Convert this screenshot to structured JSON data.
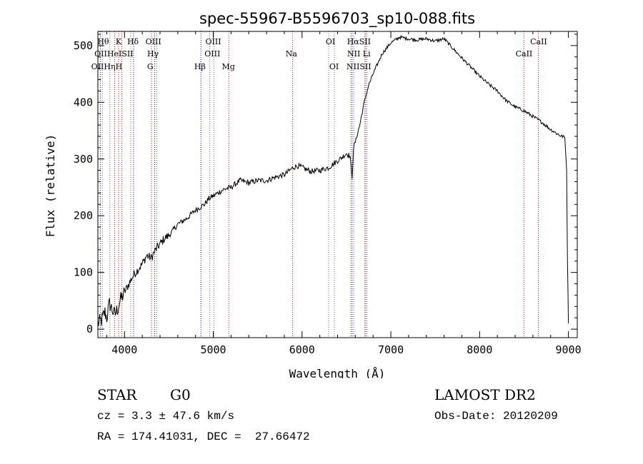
{
  "chart_data": {
    "type": "line",
    "title": "spec-55967-B5596703_sp10-088.fits",
    "xlabel": "Wavelength (Å)",
    "ylabel": "Flux (relative)",
    "xlim": [
      3700,
      9100
    ],
    "ylim": [
      -15,
      525
    ],
    "xticks": [
      4000,
      5000,
      6000,
      7000,
      8000,
      9000
    ],
    "yticks": [
      0,
      100,
      200,
      300,
      400,
      500
    ],
    "grid": false,
    "series": [
      {
        "x": [
          3700,
          3740,
          3780,
          3800,
          3830,
          3860,
          3890,
          3920,
          3950,
          4000,
          4050,
          4100,
          4150,
          4200,
          4250,
          4300,
          4350,
          4400,
          4450,
          4500,
          4600,
          4700,
          4800,
          4850,
          4900,
          4950,
          5000,
          5050,
          5100,
          5150,
          5200,
          5300,
          5400,
          5500,
          5600,
          5700,
          5800,
          5900,
          5950,
          6000,
          6100,
          6200,
          6300,
          6400,
          6450,
          6500,
          6540,
          6563,
          6580,
          6600,
          6650,
          6700,
          6750,
          6800,
          6900,
          7000,
          7100,
          7200,
          7300,
          7400,
          7500,
          7600,
          7700,
          7800,
          7900,
          8000,
          8100,
          8200,
          8300,
          8400,
          8500,
          8600,
          8700,
          8800,
          8900,
          8960,
          8980,
          8990,
          9000
        ],
        "y": [
          10,
          15,
          30,
          20,
          45,
          35,
          25,
          35,
          50,
          65,
          80,
          95,
          105,
          115,
          130,
          125,
          140,
          150,
          160,
          165,
          185,
          195,
          210,
          215,
          220,
          230,
          235,
          240,
          245,
          248,
          250,
          262,
          258,
          262,
          262,
          268,
          272,
          285,
          288,
          285,
          278,
          280,
          285,
          297,
          303,
          310,
          305,
          268,
          320,
          330,
          360,
          400,
          430,
          450,
          485,
          505,
          515,
          512,
          510,
          512,
          508,
          512,
          495,
          478,
          462,
          446,
          432,
          420,
          403,
          392,
          385,
          375,
          365,
          352,
          342,
          338,
          280,
          120,
          10
        ],
        "color": "#000000"
      }
    ],
    "lines": [
      {
        "names": [
          "Hθ",
          "OII"
        ],
        "x": 3727,
        "color": "#0000ff"
      },
      {
        "names": [
          "OIII"
        ],
        "x": 3750
      },
      {
        "names": [
          "Hη"
        ],
        "x": 3835
      },
      {
        "names": [
          "K",
          "HeI"
        ],
        "x": 3889,
        "color": "#cc0000"
      },
      {
        "names": [
          "K"
        ],
        "x": 3934,
        "color": "#cc0000"
      },
      {
        "names": [
          "H"
        ],
        "x": 3969,
        "color": "#cc0000"
      },
      {
        "names": [
          "SII"
        ],
        "x": 4070
      },
      {
        "names": [
          "Hδ"
        ],
        "x": 4102,
        "color": "#0000ff"
      },
      {
        "names": [
          "G"
        ],
        "x": 4304,
        "color": "#cc0000"
      },
      {
        "names": [
          "Hγ"
        ],
        "x": 4340,
        "color": "#0000ff"
      },
      {
        "names": [
          "OIII"
        ],
        "x": 4363
      },
      {
        "names": [
          "Hβ"
        ],
        "x": 4861,
        "color": "#0000ff"
      },
      {
        "names": [
          "OIII"
        ],
        "x": 4959
      },
      {
        "names": [
          "OIII"
        ],
        "x": 5007
      },
      {
        "names": [
          "Mg"
        ],
        "x": 5175,
        "color": "#cc0000"
      },
      {
        "names": [
          "Na"
        ],
        "x": 5894,
        "color": "#cc0000"
      },
      {
        "names": [
          "OI"
        ],
        "x": 6300
      },
      {
        "names": [
          "OI"
        ],
        "x": 6364
      },
      {
        "names": [
          "NII"
        ],
        "x": 6548
      },
      {
        "names": [
          "Hα"
        ],
        "x": 6563,
        "color": "#0000ff"
      },
      {
        "names": [
          "NII"
        ],
        "x": 6583
      },
      {
        "names": [
          "Li"
        ],
        "x": 6708,
        "color": "#cc0000"
      },
      {
        "names": [
          "SII"
        ],
        "x": 6717
      },
      {
        "names": [
          "SII"
        ],
        "x": 6731
      },
      {
        "names": [
          "CaII"
        ],
        "x": 8498,
        "color": "#cc0000"
      },
      {
        "names": [
          "CaII"
        ],
        "x": 8662,
        "color": "#cc0000"
      }
    ],
    "line_labels": [
      {
        "text": "Hθ",
        "x": 3760,
        "row": 0
      },
      {
        "text": "K",
        "x": 3933,
        "row": 0
      },
      {
        "text": "Hδ",
        "x": 4095,
        "row": 0
      },
      {
        "text": "OIII",
        "x": 4325,
        "row": 0
      },
      {
        "text": "OIII",
        "x": 5000,
        "row": 0
      },
      {
        "text": "OI",
        "x": 6320,
        "row": 0
      },
      {
        "text": "HαSII",
        "x": 6640,
        "row": 0
      },
      {
        "text": "CaII",
        "x": 8665,
        "row": 0
      },
      {
        "text": "OIIHeISII",
        "x": 3880,
        "row": 1
      },
      {
        "text": "Hγ",
        "x": 4320,
        "row": 1
      },
      {
        "text": "OIII",
        "x": 4990,
        "row": 1
      },
      {
        "text": "Na",
        "x": 5880,
        "row": 1
      },
      {
        "text": "NII Li",
        "x": 6640,
        "row": 1
      },
      {
        "text": "CaII",
        "x": 8500,
        "row": 1
      },
      {
        "text": "OIIHηH",
        "x": 3800,
        "row": 2
      },
      {
        "text": "G",
        "x": 4290,
        "row": 2
      },
      {
        "text": "Hβ",
        "x": 4850,
        "row": 2
      },
      {
        "text": "Mg",
        "x": 5170,
        "row": 2
      },
      {
        "text": "OI",
        "x": 6360,
        "row": 2
      },
      {
        "text": "NIISII",
        "x": 6640,
        "row": 2
      }
    ]
  },
  "info": {
    "class": "STAR",
    "subclass": "G0",
    "survey": "LAMOST DR2",
    "cz": "cz = 3.3 ± 47.6 km/s",
    "obs_date": "Obs-Date: 20120209",
    "coords": "RA = 174.41031, DEC =  27.66472"
  }
}
